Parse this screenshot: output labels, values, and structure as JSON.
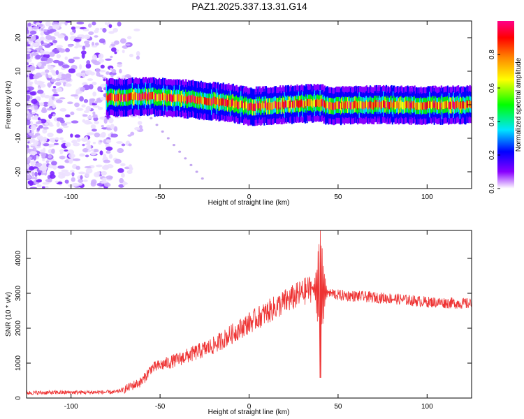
{
  "title": "PAZ1.2025.337.13.31.G14",
  "chart_data": [
    {
      "type": "heatmap",
      "xlabel": "Height of straight line (km)",
      "ylabel": "Frequency (Hz)",
      "xlim": [
        -125,
        125
      ],
      "ylim": [
        -25,
        25
      ],
      "xticks": [
        -100,
        -50,
        0,
        50,
        100
      ],
      "yticks": [
        -20,
        -10,
        0,
        10,
        20
      ],
      "colorbar": {
        "label": "Normalized spectral amplitude",
        "range": [
          0,
          1
        ],
        "ticks": [
          0.0,
          0.2,
          0.4,
          0.6,
          0.8
        ],
        "tick_labels": [
          "0.0",
          "0.2",
          "0.4",
          "0.6",
          "0.8"
        ],
        "colors": [
          "#ffffff",
          "#8800ff",
          "#0000ff",
          "#00e5ff",
          "#00ff00",
          "#ffff00",
          "#ff8800",
          "#ff0000",
          "#ff0088"
        ]
      },
      "ridge": {
        "start_height_km": -80,
        "end_height_km": 125,
        "points": [
          [
            -80,
            2.0
          ],
          [
            -60,
            2.5
          ],
          [
            -40,
            2.0
          ],
          [
            -20,
            1.0
          ],
          [
            -10,
            0.5
          ],
          [
            0,
            -0.5
          ],
          [
            20,
            0.0
          ],
          [
            40,
            0.5
          ],
          [
            45,
            -0.5
          ],
          [
            60,
            0.0
          ],
          [
            80,
            0.0
          ],
          [
            100,
            -0.2
          ],
          [
            125,
            0.0
          ]
        ]
      },
      "noise_region_km": [
        -125,
        -55
      ]
    },
    {
      "type": "line",
      "xlabel": "Height of straight line (km)",
      "ylabel": "SNR (10 * v/v)",
      "xlim": [
        -125,
        125
      ],
      "ylim": [
        0,
        4800
      ],
      "xticks": [
        -100,
        -50,
        0,
        50,
        100
      ],
      "yticks": [
        0,
        1000,
        2000,
        3000,
        4000
      ],
      "color": "#ee3333",
      "trend": {
        "x": [
          -125,
          -75,
          -70,
          -60,
          -55,
          -40,
          -20,
          0,
          20,
          35,
          42,
          50,
          80,
          100,
          125
        ],
        "y": [
          150,
          170,
          250,
          480,
          850,
          1100,
          1500,
          2150,
          2750,
          3150,
          3050,
          2950,
          2850,
          2750,
          2700
        ]
      },
      "spike": {
        "x": 40,
        "max": 4800,
        "min": 580
      }
    }
  ]
}
